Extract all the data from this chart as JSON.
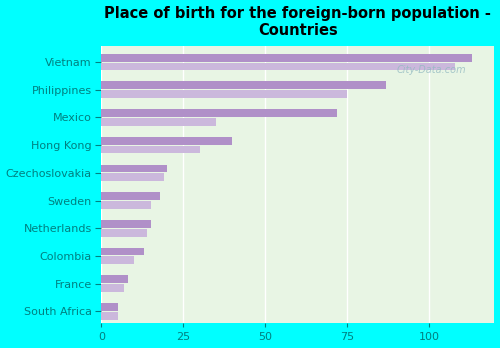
{
  "title": "Place of birth for the foreign-born population -\nCountries",
  "categories": [
    "Vietnam",
    "Philippines",
    "Mexico",
    "Hong Kong",
    "Czechoslovakia",
    "Sweden",
    "Netherlands",
    "Colombia",
    "France",
    "South Africa"
  ],
  "values_dark": [
    113,
    87,
    72,
    40,
    20,
    18,
    15,
    13,
    8,
    5
  ],
  "values_light": [
    108,
    75,
    35,
    30,
    19,
    15,
    14,
    10,
    7,
    5
  ],
  "bar_color_dark": "#b090c8",
  "bar_color_light": "#cbb8dc",
  "bg_color_fig": "#00ffff",
  "bg_color_chart_top": "#e0f0ee",
  "bg_color_chart_bottom": "#e8f5e4",
  "xlim": [
    0,
    120
  ],
  "xticks": [
    0,
    25,
    50,
    75,
    100
  ],
  "watermark": "City-Data.com",
  "title_fontsize": 10.5,
  "label_fontsize": 8,
  "tick_fontsize": 8
}
